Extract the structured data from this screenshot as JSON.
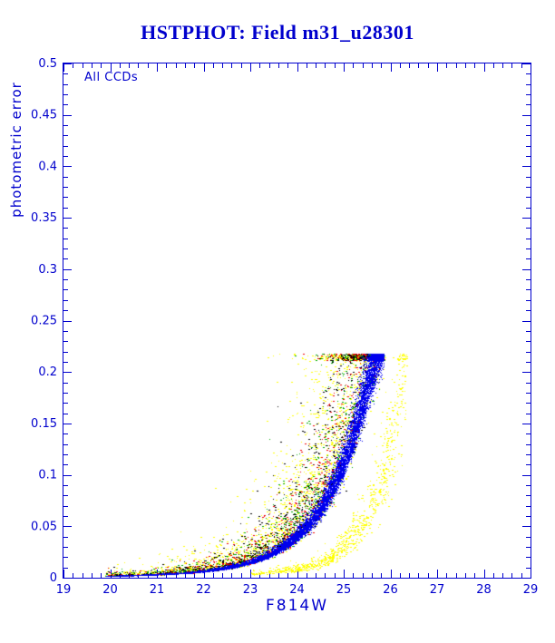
{
  "chart_data": {
    "type": "scatter",
    "title": "HSTPHOT: Field m31_u28301",
    "inset_label": "All CCDs",
    "xlabel": "F814W",
    "ylabel": "photometric error",
    "xlim": [
      19,
      29
    ],
    "ylim": [
      0,
      0.5
    ],
    "x_major_step": 1,
    "x_minor_step": 0.2,
    "y_major_step": 0.05,
    "y_minor_step": 0.01,
    "x_tick_labels": [
      "19",
      "20",
      "21",
      "22",
      "23",
      "24",
      "25",
      "26",
      "27",
      "28",
      "29"
    ],
    "y_tick_labels": [
      "0",
      "0.05",
      "0.1",
      "0.15",
      "0.2",
      "0.25",
      "0.3",
      "0.35",
      "0.4",
      "0.45",
      "0.5"
    ],
    "axis_color": "#0000cd",
    "title_color": "#0000cd",
    "background": "#ffffff",
    "grid": false,
    "legend": "none",
    "error_cap": 0.218,
    "seed": 1337,
    "curves": {
      "main": [
        [
          19.9,
          0.0015
        ],
        [
          21,
          0.003
        ],
        [
          22,
          0.006
        ],
        [
          23,
          0.014
        ],
        [
          24,
          0.038
        ],
        [
          24.5,
          0.062
        ],
        [
          25,
          0.105
        ],
        [
          25.35,
          0.15
        ],
        [
          25.6,
          0.19
        ],
        [
          25.82,
          0.216
        ]
      ],
      "second": [
        [
          23.0,
          0.004
        ],
        [
          24.0,
          0.008
        ],
        [
          24.6,
          0.015
        ],
        [
          25.0,
          0.028
        ],
        [
          25.4,
          0.05
        ],
        [
          25.8,
          0.09
        ],
        [
          26.05,
          0.13
        ],
        [
          26.2,
          0.17
        ],
        [
          26.33,
          0.215
        ]
      ]
    },
    "series": [
      {
        "name": "ccd-yellow",
        "color": "#ffff00",
        "n": 2600,
        "curve": "main",
        "x_min": 19.9,
        "x_max": 25.85,
        "fade_power": 0.32,
        "uniform_frac": 0.35,
        "sigma_up": 0.75,
        "sigma_sym": 0.1,
        "dot2": true
      },
      {
        "name": "ccd-green",
        "color": "#00aa00",
        "n": 950,
        "curve": "main",
        "x_min": 19.9,
        "x_max": 25.85,
        "fade_power": 0.32,
        "uniform_frac": 0.3,
        "sigma_up": 0.55,
        "sigma_sym": 0.08,
        "dot2": true
      },
      {
        "name": "ccd-red",
        "color": "#ee0000",
        "n": 950,
        "curve": "main",
        "x_min": 19.9,
        "x_max": 25.85,
        "fade_power": 0.32,
        "uniform_frac": 0.3,
        "sigma_up": 0.55,
        "sigma_sym": 0.08,
        "dot2": true
      },
      {
        "name": "ccd-black",
        "color": "#000000",
        "n": 1000,
        "curve": "main",
        "x_min": 19.9,
        "x_max": 25.85,
        "fade_power": 0.32,
        "uniform_frac": 0.3,
        "sigma_up": 0.6,
        "sigma_sym": 0.08,
        "dot2": true
      },
      {
        "name": "ccd-blue",
        "color": "#0000ee",
        "n": 9500,
        "curve": "main",
        "x_min": 19.9,
        "x_max": 25.85,
        "fade_power": 0.28,
        "uniform_frac": 0.18,
        "sigma_up": 0.1,
        "sigma_sym": 0.05,
        "dot2": false
      },
      {
        "name": "second-population-yellow",
        "color": "#ffff00",
        "n": 900,
        "curve": "second",
        "x_min": 23.0,
        "x_max": 26.35,
        "fade_power": 0.5,
        "uniform_frac": 0.3,
        "sigma_up": 0.12,
        "sigma_sym": 0.2,
        "dot2": true
      }
    ]
  }
}
